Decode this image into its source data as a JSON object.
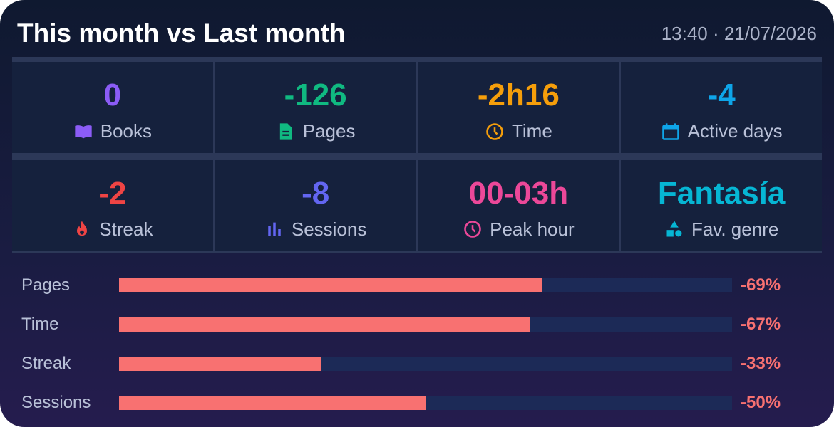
{
  "header": {
    "title": "This month vs Last month",
    "timestamp": "13:40 · 21/07/2026"
  },
  "tiles": [
    {
      "value": 0,
      "label": "Books",
      "color": "#8b5cf6"
    },
    {
      "value": -126,
      "label": "Pages",
      "color": "#10b981"
    },
    {
      "value": "-2h16",
      "label": "Time",
      "color": "#f59e0b"
    },
    {
      "value": -4,
      "label": "Active days",
      "color": "#0ea5e9"
    },
    {
      "value": -2,
      "label": "Streak",
      "color": "#ef4444"
    },
    {
      "value": -8,
      "label": "Sessions",
      "color": "#6366f1"
    },
    {
      "value": "00-03h",
      "label": "Peak hour",
      "color": "#ec4899"
    },
    {
      "value": "Fantasía",
      "label": "Fav. genre",
      "color": "#06b6d4"
    }
  ],
  "bars": [
    {
      "label": "Pages",
      "value": -69,
      "value_label": "-69%"
    },
    {
      "label": "Time",
      "value": -67,
      "value_label": "-67%"
    },
    {
      "label": "Streak",
      "value": -33,
      "value_label": "-33%"
    },
    {
      "label": "Sessions",
      "value": -50,
      "value_label": "-50%"
    }
  ]
}
